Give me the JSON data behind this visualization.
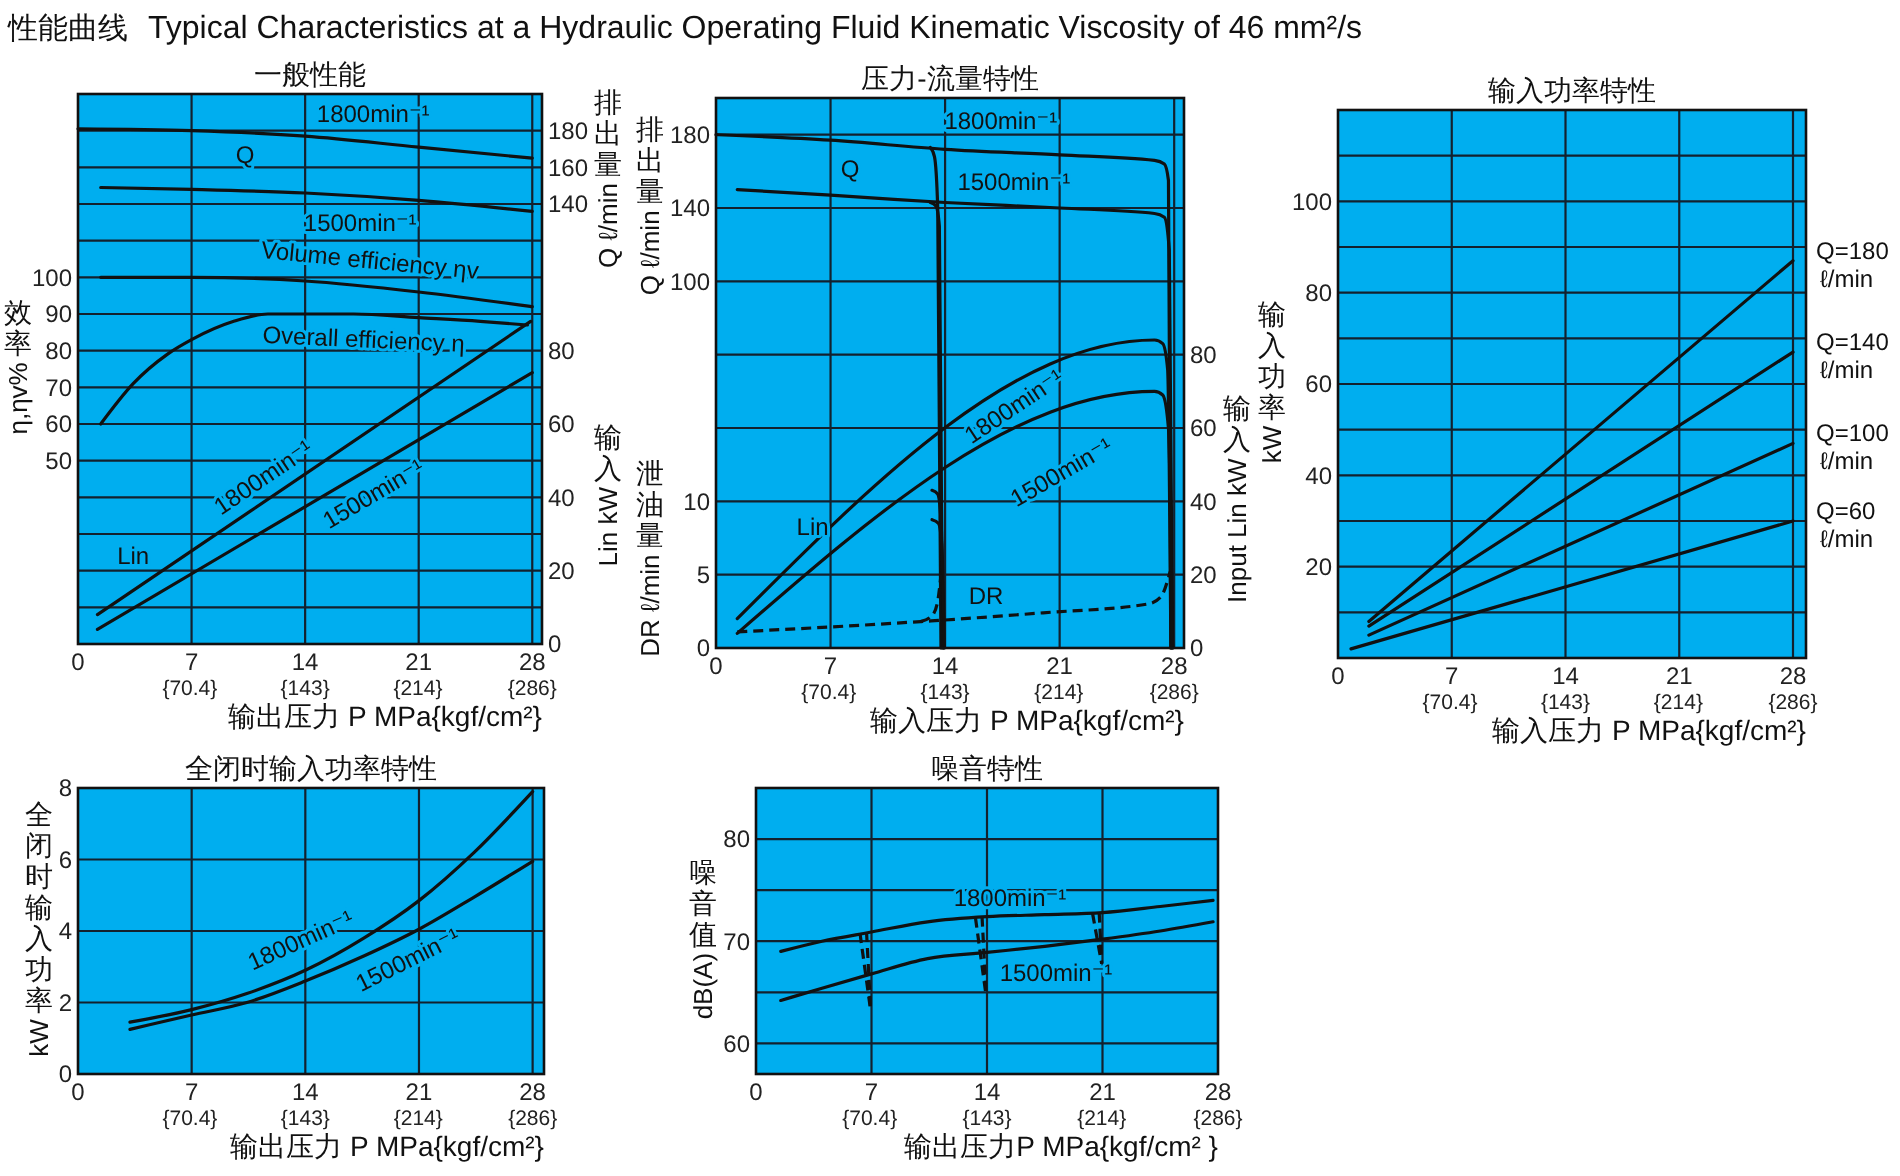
{
  "chart_data": [
    {
      "type": "line",
      "title": "一般性能",
      "xlabel": "输出压力 P MPa{kgf/cm²}",
      "ylabel": "效率 η,ηv%",
      "y2label": "输入 Lin kW",
      "y3label": "排出量 Q ℓ/min",
      "xlim": [
        0,
        28.6
      ],
      "xticks": [
        0,
        7,
        14,
        21,
        28
      ],
      "x2lim": [
        0,
        292.1
      ],
      "x2ticks": [
        {
          "value": 70.4,
          "label": "{70.4}"
        },
        {
          "value": 143,
          "label": "{143}"
        },
        {
          "value": 214,
          "label": "{214}"
        },
        {
          "value": 286,
          "label": "{286}"
        }
      ],
      "ylim": [
        0,
        150
      ],
      "yticks": [
        {
          "value": 10,
          "label": null
        },
        {
          "value": 20,
          "label": null
        },
        {
          "value": 30,
          "label": null
        },
        {
          "value": 40,
          "label": null
        },
        50,
        60,
        70,
        80,
        90,
        100,
        {
          "value": 110,
          "label": null
        },
        {
          "value": 120,
          "label": null
        },
        {
          "value": 130,
          "label": null
        },
        {
          "value": 140,
          "label": null
        }
      ],
      "y2lim": [
        0,
        150
      ],
      "y2ticks": [
        0,
        20,
        40,
        60,
        80
      ],
      "y3lim": [
        -100,
        200
      ],
      "y3ticks": [
        140,
        160,
        180
      ],
      "grid": true,
      "series": [
        {
          "color": "#111111",
          "axis": "y3",
          "x": [
            0,
            7,
            14,
            21,
            28
          ],
          "values": [
            181,
            180,
            177,
            171,
            165
          ]
        },
        {
          "color": "#111111",
          "axis": "y3",
          "x": [
            1.4,
            7,
            14,
            21,
            28
          ],
          "values": [
            149,
            148,
            146,
            142,
            136
          ]
        },
        {
          "color": "#111111",
          "x": [
            1.4,
            7,
            14,
            21,
            28
          ],
          "values": [
            100,
            100,
            99,
            96,
            92
          ]
        },
        {
          "color": "#111111",
          "x": [
            1.4,
            3.4,
            5.5,
            7,
            9.6,
            11.7,
            14,
            17,
            21,
            24.8,
            27.7
          ],
          "values": [
            60,
            71,
            79,
            83,
            88,
            90,
            90,
            90,
            89,
            88,
            87
          ]
        },
        {
          "color": "#111111",
          "axis": "y2",
          "x": [
            1.2,
            27.9
          ],
          "values": [
            8,
            88
          ]
        },
        {
          "color": "#111111",
          "axis": "y2",
          "x": [
            1.2,
            28
          ],
          "values": [
            4,
            74
          ]
        }
      ],
      "annotations": [
        "性能曲线",
        "Typical Characteristics at a Hydraulic Operating Fluid Kinematic Viscosity of 46 mm²/s",
        "1800min⁻¹",
        "Q",
        "1500min⁻¹",
        "Volume efficiency ηv",
        "Overall efficiency η",
        "1800min⁻¹",
        "1500min⁻¹",
        "Lin"
      ]
    },
    {
      "type": "line",
      "title": "压力-流量特性",
      "xlabel": "输入压力 P MPa{kgf/cm²}",
      "ylabel": "泄油量 DR ℓ/min",
      "y2label": "输入 Input Lin kW",
      "y3label": "排出量 Q ℓ/min",
      "xlim": [
        0,
        28.6
      ],
      "xticks": [
        0,
        7,
        14,
        21,
        28
      ],
      "x2lim": [
        0,
        292.1
      ],
      "x2ticks": [
        {
          "value": 70.4,
          "label": "{70.4}"
        },
        {
          "value": 143,
          "label": "{143}"
        },
        {
          "value": 214,
          "label": "{214}"
        },
        {
          "value": 286,
          "label": "{286}"
        }
      ],
      "ylim": [
        0,
        37.5
      ],
      "yticks": [
        0,
        5,
        10,
        {
          "value": 15,
          "label": null
        },
        {
          "value": 20,
          "label": null
        },
        {
          "value": 25,
          "label": null
        },
        {
          "value": 30,
          "label": null
        },
        {
          "value": 35,
          "label": null
        }
      ],
      "y2lim": [
        0,
        150
      ],
      "y2ticks": [
        0,
        20,
        40,
        60,
        80
      ],
      "y3lim": [
        -100,
        200
      ],
      "y3ticks": [
        100,
        140,
        180
      ],
      "grid": true,
      "series": [
        {
          "color": "#111111",
          "axis": "y3",
          "x": [
            0,
            7,
            14,
            21,
            26.8,
            27.4,
            27.65,
            27.8
          ],
          "values": [
            180,
            177,
            172,
            169,
            166,
            164,
            155,
            -100
          ]
        },
        {
          "color": "#111111",
          "axis": "y3",
          "x": [
            1.3,
            7,
            14,
            21,
            26.8,
            27.4,
            27.7,
            27.9
          ],
          "values": [
            150,
            147,
            143,
            140,
            137,
            135,
            117,
            -100
          ]
        },
        {
          "color": "#111111",
          "axis": "y3",
          "x": [
            13.1,
            13.35,
            13.55,
            13.75
          ],
          "values": [
            173,
            168,
            140,
            -100
          ]
        },
        {
          "color": "#111111",
          "axis": "y3",
          "x": [
            13.1,
            13.45,
            13.65,
            13.85
          ],
          "values": [
            143,
            141,
            130,
            -100
          ]
        },
        {
          "color": "#111111",
          "axis": "y2",
          "x": [
            1.3,
            26.8,
            27.3,
            27.6,
            27.8
          ],
          "values": [
            8,
            84,
            83,
            76,
            0
          ]
        },
        {
          "color": "#111111",
          "axis": "y2",
          "x": [
            1.3,
            26.8,
            27.3,
            27.65,
            27.9
          ],
          "values": [
            4,
            70,
            69,
            60,
            0
          ]
        },
        {
          "color": "#111111",
          "axis": "y2",
          "x": [
            13.2,
            13.55,
            13.75,
            13.9
          ],
          "values": [
            43,
            42,
            35,
            0
          ]
        },
        {
          "color": "#111111",
          "axis": "y2",
          "x": [
            13.2,
            13.6,
            13.8,
            13.95
          ],
          "values": [
            35,
            34,
            28,
            0
          ]
        },
        {
          "color": "#111111",
          "line_style": "dashed",
          "x": [
            1.3,
            12.5,
            20,
            26.4,
            27.2,
            27.6,
            27.75
          ],
          "values": [
            1.1,
            1.8,
            2.4,
            3,
            3.5,
            4.6,
            5.2
          ]
        },
        {
          "color": "#111111",
          "line_style": "dashed",
          "x": [
            12.5,
            13.2,
            13.55,
            13.75
          ],
          "values": [
            1.8,
            2.2,
            3.2,
            5
          ]
        }
      ],
      "annotations": [
        "1800min⁻¹",
        "Q",
        "1500min⁻¹",
        "1800min⁻¹",
        "1500min⁻¹",
        "Lin",
        "DR"
      ]
    },
    {
      "type": "line",
      "title": "输入功率特性",
      "xlabel": "输入压力 P MPa{kgf/cm²}",
      "ylabel": "输入功率 kW",
      "xlim": [
        0,
        28.8
      ],
      "xticks": [
        0,
        7,
        14,
        21,
        28
      ],
      "x2lim": [
        0,
        294.2
      ],
      "x2ticks": [
        {
          "value": 70.4,
          "label": "{70.4}"
        },
        {
          "value": 143,
          "label": "{143}"
        },
        {
          "value": 214,
          "label": "{214}"
        },
        {
          "value": 286,
          "label": "{286}"
        }
      ],
      "ylim": [
        0,
        120
      ],
      "yticks": [
        {
          "value": 10,
          "label": null
        },
        20,
        {
          "value": 30,
          "label": null
        },
        40,
        {
          "value": 50,
          "label": null
        },
        60,
        {
          "value": 70,
          "label": null
        },
        80,
        {
          "value": 90,
          "label": null
        },
        100,
        {
          "value": 110,
          "label": null
        }
      ],
      "grid": true,
      "series": [
        {
          "name": "Q=180 ℓ/min",
          "color": "#111111",
          "x": [
            1.9,
            28
          ],
          "values": [
            8,
            87
          ]
        },
        {
          "name": "Q=140 ℓ/min",
          "color": "#111111",
          "x": [
            1.9,
            28
          ],
          "values": [
            7,
            67
          ]
        },
        {
          "name": "Q=100 ℓ/min",
          "color": "#111111",
          "x": [
            1.9,
            28
          ],
          "values": [
            5,
            47
          ]
        },
        {
          "name": "Q=60 ℓ/min",
          "color": "#111111",
          "x": [
            0.8,
            28
          ],
          "values": [
            2,
            30
          ]
        }
      ]
    },
    {
      "type": "line",
      "title": "全闭时输入功率特性",
      "xlabel": "输出压力 P MPa{kgf/cm²}",
      "ylabel": "全闭时输入功率 kW",
      "xlim": [
        0,
        28.7
      ],
      "xticks": [
        0,
        7,
        14,
        21,
        28
      ],
      "x2lim": [
        0,
        293.1
      ],
      "x2ticks": [
        {
          "value": 70.4,
          "label": "{70.4}"
        },
        {
          "value": 143,
          "label": "{143}"
        },
        {
          "value": 214,
          "label": "{214}"
        },
        {
          "value": 286,
          "label": "{286}"
        }
      ],
      "ylim": [
        0,
        8
      ],
      "yticks": [
        0,
        2,
        4,
        6,
        8
      ],
      "grid": true,
      "series": [
        {
          "color": "#111111",
          "x": [
            3.2,
            7,
            10.4,
            14,
            17.6,
            21,
            24.4,
            28
          ],
          "values": [
            1.45,
            1.8,
            2.25,
            2.9,
            3.8,
            4.85,
            6.2,
            7.9
          ]
        },
        {
          "color": "#111111",
          "x": [
            3.2,
            7,
            10.4,
            14,
            17.6,
            21,
            24.4,
            28
          ],
          "values": [
            1.25,
            1.65,
            2,
            2.6,
            3.3,
            4.05,
            4.95,
            5.95
          ]
        }
      ],
      "annotations": [
        "1800min⁻¹",
        "1500min⁻¹"
      ]
    },
    {
      "type": "line",
      "title": "噪音特性",
      "xlabel": "输出压力P MPa{kgf/cm² }",
      "ylabel": "噪音值 dB(A)",
      "xlim": [
        0,
        28
      ],
      "xticks": [
        0,
        7,
        14,
        21,
        28
      ],
      "x2lim": [
        0,
        286
      ],
      "x2ticks": [
        {
          "value": 70.4,
          "label": "{70.4}"
        },
        {
          "value": 143,
          "label": "{143}"
        },
        {
          "value": 214,
          "label": "{214}"
        },
        {
          "value": 286,
          "label": "{286}"
        }
      ],
      "ylim": [
        57,
        85
      ],
      "yticks": [
        60,
        {
          "value": 65,
          "label": null
        },
        70,
        {
          "value": 75,
          "label": null
        },
        80
      ],
      "grid": true,
      "series": [
        {
          "color": "#111111",
          "x": [
            1.5,
            4,
            7,
            10.4,
            14,
            17.5,
            21,
            24.5,
            27.7
          ],
          "values": [
            69,
            70,
            70.9,
            71.9,
            72.4,
            72.6,
            72.8,
            73.4,
            74
          ]
        },
        {
          "color": "#111111",
          "x": [
            1.5,
            4,
            7,
            10.4,
            14,
            17.5,
            21,
            24.5,
            27.7
          ],
          "values": [
            64.2,
            65.4,
            66.8,
            68.3,
            68.9,
            69.5,
            70.2,
            71,
            71.9
          ]
        },
        {
          "color": "#111111",
          "line_style": "dashed",
          "x": [
            6.3,
            6.95
          ],
          "values": [
            70.8,
            63.2
          ]
        },
        {
          "color": "#111111",
          "line_style": "dashed",
          "x": [
            6.7,
            6.95
          ],
          "values": [
            70.9,
            63.2
          ]
        },
        {
          "color": "#111111",
          "line_style": "dashed",
          "x": [
            13.3,
            13.95
          ],
          "values": [
            72.3,
            64.6
          ]
        },
        {
          "color": "#111111",
          "line_style": "dashed",
          "x": [
            13.7,
            13.95
          ],
          "values": [
            72.4,
            64.6
          ]
        },
        {
          "color": "#111111",
          "line_style": "dashed",
          "x": [
            20.4,
            20.95
          ],
          "values": [
            72.7,
            67.8
          ]
        },
        {
          "color": "#111111",
          "line_style": "dashed",
          "x": [
            20.8,
            20.95
          ],
          "values": [
            72.8,
            67.8
          ]
        }
      ],
      "annotations": [
        "1800min⁻¹",
        "1500min⁻¹"
      ]
    }
  ]
}
